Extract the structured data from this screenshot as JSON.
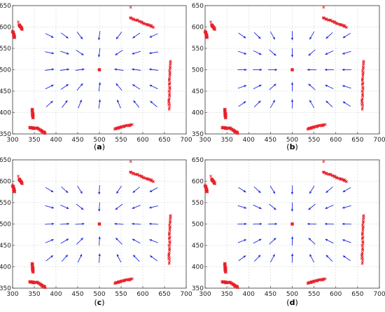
{
  "chart_data": [
    {
      "type": "scatter",
      "title": "",
      "caption_prefix": "(",
      "caption_letter": "a",
      "caption_suffix": ")",
      "xlim": [
        300,
        700
      ],
      "ylim": [
        350,
        650
      ],
      "xticks": [
        "300",
        "350",
        "400",
        "450",
        "500",
        "550",
        "600",
        "650",
        "700"
      ],
      "yticks": [
        "350",
        "400",
        "450",
        "500",
        "550",
        "600",
        "650"
      ],
      "grid": true,
      "center": [
        500,
        500
      ],
      "rotation": 0.45
    },
    {
      "type": "scatter",
      "title": "",
      "caption_prefix": "(",
      "caption_letter": "b",
      "caption_suffix": ")",
      "xlim": [
        300,
        700
      ],
      "ylim": [
        350,
        650
      ],
      "xticks": [
        "300",
        "350",
        "400",
        "450",
        "500",
        "550",
        "600",
        "650",
        "700"
      ],
      "yticks": [
        "350",
        "400",
        "450",
        "500",
        "550",
        "600",
        "650"
      ],
      "grid": true,
      "center": [
        500,
        500
      ],
      "rotation": 0.0
    },
    {
      "type": "scatter",
      "title": "",
      "caption_prefix": "(",
      "caption_letter": "c",
      "caption_suffix": ")",
      "xlim": [
        300,
        700
      ],
      "ylim": [
        350,
        650
      ],
      "xticks": [
        "300",
        "350",
        "400",
        "450",
        "500",
        "550",
        "600",
        "650",
        "700"
      ],
      "yticks": [
        "350",
        "400",
        "450",
        "500",
        "550",
        "600",
        "650"
      ],
      "grid": true,
      "center": [
        500,
        500
      ],
      "rotation": 0.2
    },
    {
      "type": "scatter",
      "title": "",
      "caption_prefix": "(",
      "caption_letter": "d",
      "caption_suffix": ")",
      "xlim": [
        300,
        700
      ],
      "ylim": [
        350,
        650
      ],
      "xticks": [
        "300",
        "350",
        "400",
        "450",
        "500",
        "550",
        "600",
        "650",
        "700"
      ],
      "yticks": [
        "350",
        "400",
        "450",
        "500",
        "550",
        "600",
        "650"
      ],
      "grid": true,
      "center": [
        500,
        500
      ],
      "rotation": 0.1
    }
  ],
  "shared": {
    "arrow_grid_x": [
      385,
      420,
      455,
      500,
      545,
      585,
      625
    ],
    "arrow_grid_y": [
      420,
      460,
      500,
      540,
      580
    ],
    "obstacles": [
      {
        "x1": 315,
        "y1": 605,
        "x2": 322,
        "y2": 595
      },
      {
        "x1": 300,
        "y1": 590,
        "x2": 305,
        "y2": 575
      },
      {
        "x1": 345,
        "y1": 408,
        "x2": 347,
        "y2": 388
      },
      {
        "x1": 340,
        "y1": 365,
        "x2": 350,
        "y2": 363
      },
      {
        "x1": 355,
        "y1": 365,
        "x2": 375,
        "y2": 352
      },
      {
        "x1": 535,
        "y1": 362,
        "x2": 575,
        "y2": 372
      },
      {
        "x1": 570,
        "y1": 622,
        "x2": 625,
        "y2": 600
      },
      {
        "x1": 663,
        "y1": 520,
        "x2": 660,
        "y2": 408
      }
    ],
    "outliers": [
      [
        313,
        612
      ],
      [
        572,
        646
      ]
    ],
    "colors": {
      "arrow": "#1f2bdc",
      "points": "#e8202a",
      "center": "#e8202a"
    }
  }
}
